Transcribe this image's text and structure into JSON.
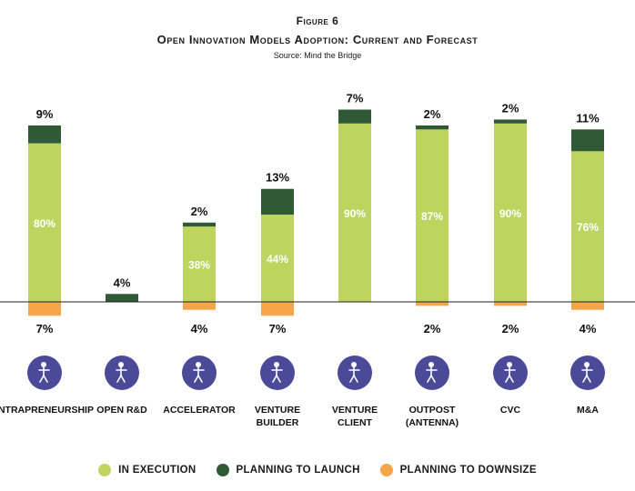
{
  "header": {
    "figure_label": "Figure 6",
    "title": "Open Innovation Models Adoption: Current and Forecast",
    "source": "Source: Mind the Bridge"
  },
  "colors": {
    "in_execution": "#bed45f",
    "planning_to_launch": "#2f5a35",
    "planning_to_downsize": "#f5a54a",
    "icon_circle": "#4a4a98",
    "baseline": "#222222"
  },
  "icons": [
    "person-running-icon",
    "researcher-icon",
    "team-icon",
    "presenter-board-icon",
    "handshake-icon",
    "map-pin-icon",
    "money-person-icon",
    "signing-contract-icon"
  ],
  "chart_data": {
    "type": "bar",
    "categories": [
      [
        "INTRAPRENEURSHIP"
      ],
      [
        "OPEN R&D"
      ],
      [
        "ACCELERATOR"
      ],
      [
        "VENTURE",
        "BUILDER"
      ],
      [
        "VENTURE",
        "CLIENT"
      ],
      [
        "OUTPOST",
        "(ANTENNA)"
      ],
      [
        "CVC"
      ],
      [
        "M&A"
      ]
    ],
    "series": [
      {
        "name": "IN EXECUTION",
        "values": [
          80,
          0,
          38,
          44,
          90,
          87,
          90,
          76
        ],
        "labels": [
          "80%",
          "",
          "38%",
          "44%",
          "90%",
          "87%",
          "90%",
          "76%"
        ]
      },
      {
        "name": "PLANNING TO LAUNCH",
        "values": [
          9,
          4,
          2,
          13,
          7,
          2,
          2,
          11
        ],
        "labels": [
          "9%",
          "4%",
          "2%",
          "13%",
          "7%",
          "2%",
          "2%",
          "11%"
        ]
      },
      {
        "name": "PLANNING TO DOWNSIZE",
        "values": [
          -7,
          0,
          -4,
          -7,
          0,
          -2,
          -2,
          -4
        ],
        "labels": [
          "7%",
          "",
          "4%",
          "7%",
          "",
          "2%",
          "2%",
          "4%"
        ]
      }
    ],
    "legend_position": "bottom"
  }
}
